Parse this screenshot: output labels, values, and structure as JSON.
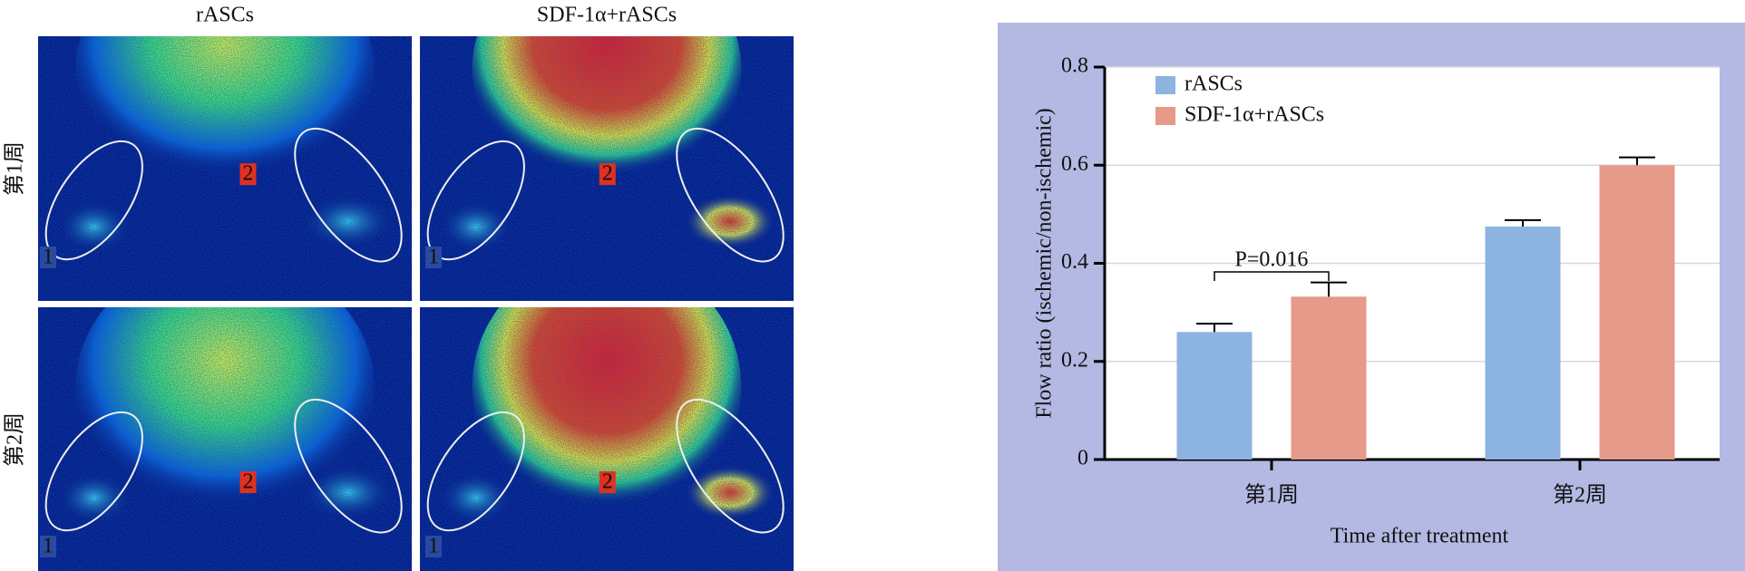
{
  "images": {
    "columns": [
      "rASCs",
      "SDF-1α+rASCs"
    ],
    "rows": [
      "第1周",
      "第2周"
    ],
    "markers": [
      "1",
      "2"
    ]
  },
  "chart_data": {
    "type": "bar",
    "ylabel": "Flow ratio (ischemic/non-ischemic)",
    "xlabel": "Time after treatment",
    "categories": [
      "第1周",
      "第2周"
    ],
    "series": [
      {
        "name": "rASCs",
        "color": "#8db3e0",
        "values": [
          0.26,
          0.475
        ],
        "errors": [
          0.017,
          0.013
        ]
      },
      {
        "name": "SDF-1α+rASCs",
        "color": "#e59a8a",
        "values": [
          0.332,
          0.6
        ],
        "errors": [
          0.029,
          0.016
        ]
      }
    ],
    "ylim": [
      0,
      0.8
    ],
    "yticks": [
      0,
      0.2,
      0.4,
      0.6,
      0.8
    ],
    "grid": true,
    "legend": "upper left",
    "annotations": [
      "P=0.016"
    ]
  }
}
